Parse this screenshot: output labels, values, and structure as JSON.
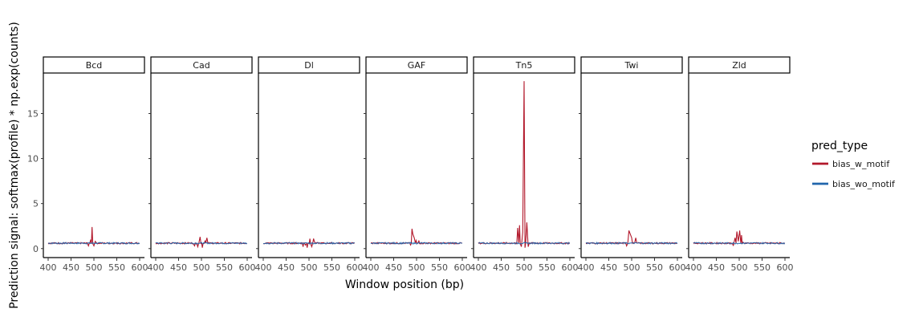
{
  "chart_data": {
    "type": "line",
    "facet_variable": "factor",
    "facets": [
      "Bcd",
      "Cad",
      "Dl",
      "GAF",
      "Tn5",
      "Twi",
      "Zld"
    ],
    "xlabel": "Window position (bp)",
    "ylabel": "Prediction signal: softmax(profile) * np.exp(counts)",
    "xlim": [
      400,
      600
    ],
    "ylim": [
      -1,
      19.5
    ],
    "xticks": [
      400,
      450,
      500,
      550,
      600
    ],
    "yticks": [
      0,
      5,
      10,
      15
    ],
    "grid": false,
    "legend": {
      "title": "pred_type",
      "position": "right",
      "entries": [
        {
          "label": "bias_w_motif",
          "color": "#b2182b"
        },
        {
          "label": "bias_wo_motif",
          "color": "#2166ac"
        }
      ]
    },
    "series": [
      {
        "name": "bias_wo_motif",
        "color": "#2166ac",
        "baseline": 0.6,
        "note": "flat noisy baseline across all facets"
      },
      {
        "name": "bias_w_motif",
        "color": "#b2182b",
        "baseline": 0.6,
        "peaks": {
          "Bcd": [
            [
              488,
              0.3
            ],
            [
              493,
              1.0
            ],
            [
              496,
              2.4
            ],
            [
              500,
              0.3
            ],
            [
              503,
              0.8
            ]
          ],
          "Cad": [
            [
              485,
              0.3
            ],
            [
              492,
              0.2
            ],
            [
              497,
              1.3
            ],
            [
              502,
              0.1
            ],
            [
              508,
              0.9
            ],
            [
              512,
              1.2
            ]
          ],
          "Dl": [
            [
              487,
              0.2
            ],
            [
              492,
              0.4
            ],
            [
              496,
              0.1
            ],
            [
              502,
              1.1
            ],
            [
              506,
              0.2
            ],
            [
              510,
              1.1
            ]
          ],
          "GAF": [
            [
              487,
              0.4
            ],
            [
              490,
              2.2
            ],
            [
              492,
              1.6
            ],
            [
              495,
              1.2
            ],
            [
              499,
              0.9
            ],
            [
              505,
              0.9
            ]
          ],
          "Tn5": [
            [
              486,
              2.3
            ],
            [
              490,
              2.6
            ],
            [
              494,
              0.2
            ],
            [
              497,
              1.8
            ],
            [
              500,
              18.6
            ],
            [
              502,
              0.1
            ],
            [
              506,
              2.9
            ],
            [
              509,
              0.2
            ]
          ],
          "Twi": [
            [
              489,
              0.3
            ],
            [
              494,
              2.0
            ],
            [
              497,
              1.6
            ],
            [
              500,
              1.2
            ],
            [
              505,
              0.6
            ],
            [
              509,
              1.2
            ]
          ],
          "Zld": [
            [
              487,
              0.3
            ],
            [
              491,
              1.2
            ],
            [
              495,
              1.9
            ],
            [
              498,
              0.8
            ],
            [
              501,
              2.0
            ],
            [
              505,
              1.5
            ],
            [
              508,
              0.7
            ]
          ]
        }
      }
    ]
  }
}
